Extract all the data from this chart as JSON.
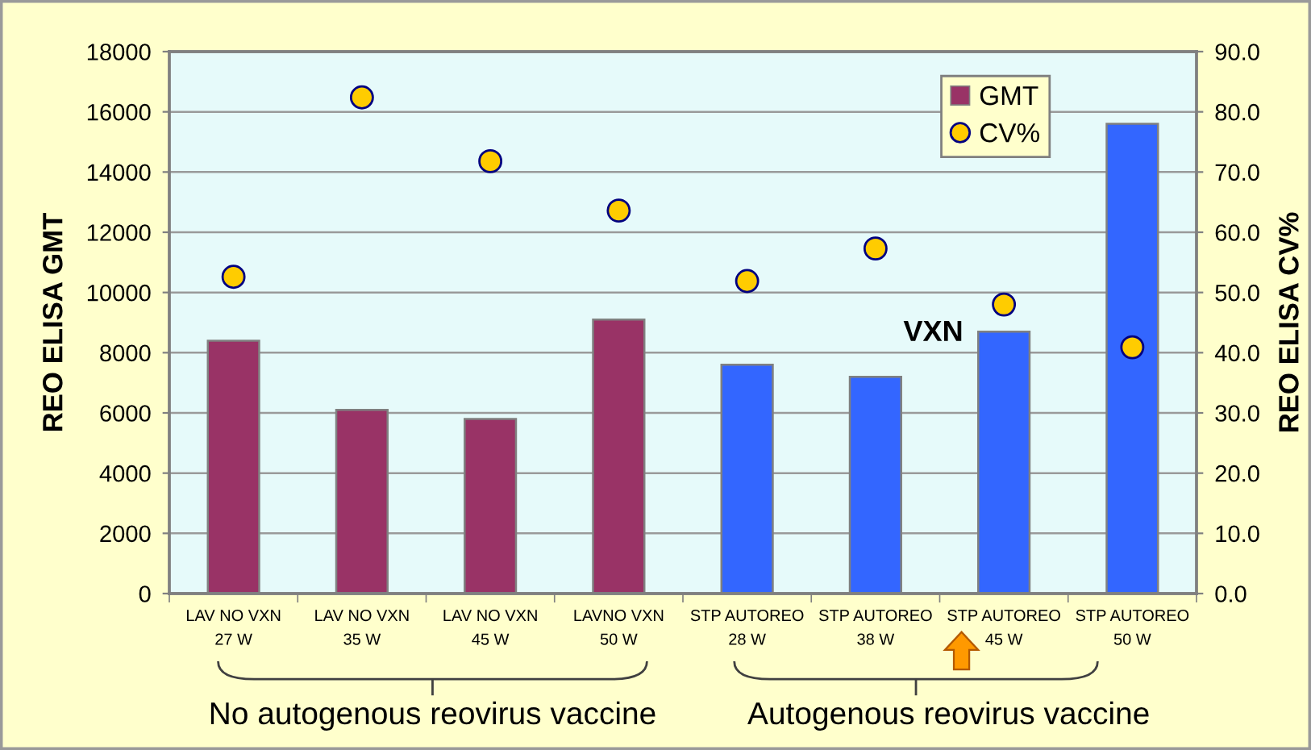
{
  "chart_data": {
    "type": "bar",
    "categories": [
      "LAV NO VXN\n27 W",
      "LAV NO VXN\n35 W",
      "LAV NO VXN\n45 W",
      "LAVNO VXN\n50 W",
      "STP AUTOREO\n28 W",
      "STP AUTOREO\n38 W",
      "STP AUTOREO\n45 W",
      "STP AUTOREO\n50 W"
    ],
    "ylabel": "REO ELISA GMT",
    "y2label": "REO ELISA CV%",
    "series": [
      {
        "name": "GMT",
        "colors": [
          "#993366",
          "#993366",
          "#993366",
          "#993366",
          "#3366ff",
          "#3366ff",
          "#3366ff",
          "#3366ff"
        ],
        "values": [
          8400,
          6100,
          5800,
          9100,
          7600,
          7200,
          8700,
          15600
        ]
      },
      {
        "name": "CV%",
        "type": "scatter",
        "axis": "y2",
        "color": "#ffcc00",
        "values": [
          52.6,
          82.4,
          71.8,
          63.6,
          51.9,
          57.3,
          48.0,
          40.9
        ]
      }
    ],
    "ylim": [
      0,
      18000
    ],
    "yticks": [
      0,
      2000,
      4000,
      6000,
      8000,
      10000,
      12000,
      14000,
      16000,
      18000
    ],
    "y2lim": [
      0,
      90
    ],
    "y2ticks": [
      {
        "value": 0,
        "label": "0.0"
      },
      {
        "value": 10,
        "label": "10.0"
      },
      {
        "value": 20,
        "label": "20.0"
      },
      {
        "value": 30,
        "label": "30.0"
      },
      {
        "value": 40,
        "label": "40.0"
      },
      {
        "value": 50,
        "label": "50.0"
      },
      {
        "value": 60,
        "label": "60.0"
      },
      {
        "value": 70,
        "label": "70.0"
      },
      {
        "value": 80,
        "label": "80.0"
      },
      {
        "value": 90,
        "label": "90.0"
      }
    ],
    "grid": "y",
    "legend": "top right",
    "marker": "circle",
    "annotations": [
      "VXN",
      "No autogenous reovirus vaccine",
      "Autogenous reovirus vaccine"
    ]
  }
}
